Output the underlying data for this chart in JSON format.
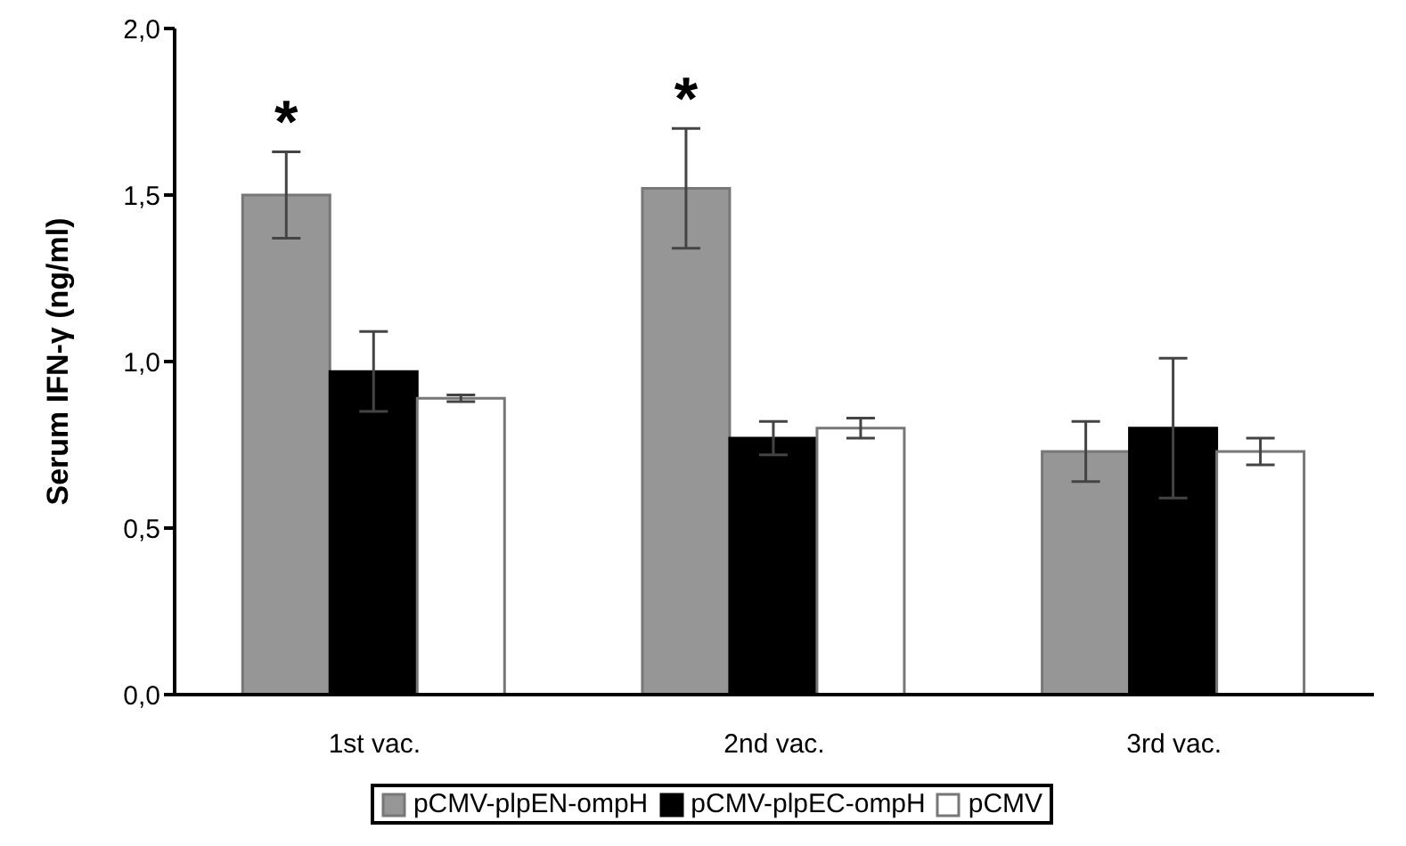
{
  "chart_data": {
    "type": "bar",
    "ylabel": "Serum IFN-γ (ng/ml)",
    "categories": [
      "1st vac.",
      "2nd vac.",
      "3rd vac."
    ],
    "series": [
      {
        "name": "pCMV-plpEN-ompH",
        "color": "#969696",
        "values": [
          1.5,
          1.52,
          0.73
        ],
        "errors": [
          0.13,
          0.18,
          0.09
        ]
      },
      {
        "name": "pCMV-plpEC-ompH",
        "color": "#000000",
        "values": [
          0.97,
          0.77,
          0.8
        ],
        "errors": [
          0.12,
          0.05,
          0.21
        ]
      },
      {
        "name": "pCMV",
        "color": "#ffffff",
        "values": [
          0.89,
          0.8,
          0.73
        ],
        "errors": [
          0.01,
          0.03,
          0.04
        ]
      }
    ],
    "ylim": [
      0,
      2
    ],
    "yticks": [
      {
        "value": 0,
        "label": "0,0"
      },
      {
        "value": 0.5,
        "label": "0,5"
      },
      {
        "value": 1,
        "label": "1,0"
      },
      {
        "value": 1.5,
        "label": "1,5"
      },
      {
        "value": 2,
        "label": "2,0"
      }
    ],
    "annotations": [
      "*",
      "*"
    ],
    "grid": false,
    "legend": "bottom"
  }
}
